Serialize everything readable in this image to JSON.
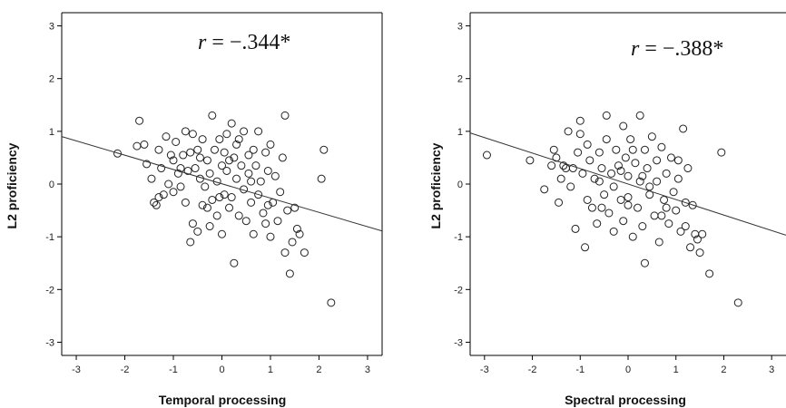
{
  "chart_data": [
    {
      "type": "scatter",
      "xlabel": "Temporal processing",
      "ylabel": "L2 proficiency",
      "xlim": [
        -3.3,
        3.3
      ],
      "ylim": [
        -3.25,
        3.25
      ],
      "x_ticks": [
        -3,
        -2,
        -1,
        0,
        1,
        2,
        3
      ],
      "y_ticks": [
        -3,
        -2,
        -1,
        0,
        1,
        2,
        3
      ],
      "grid": false,
      "annotation": {
        "r_symbol": "r",
        "r_value": " = −.344*"
      },
      "fit_line": {
        "x": [
          -3.3,
          3.3
        ],
        "y": [
          0.9,
          -0.89
        ]
      },
      "points": [
        [
          -2.15,
          0.58
        ],
        [
          -1.75,
          0.72
        ],
        [
          -1.7,
          1.2
        ],
        [
          -1.6,
          0.75
        ],
        [
          -1.55,
          0.38
        ],
        [
          -1.45,
          0.1
        ],
        [
          -1.4,
          -0.35
        ],
        [
          -1.35,
          -0.4
        ],
        [
          -1.3,
          0.65
        ],
        [
          -1.25,
          0.3
        ],
        [
          -1.2,
          -0.2
        ],
        [
          -1.15,
          0.9
        ],
        [
          -1.1,
          0.0
        ],
        [
          -1.05,
          0.55
        ],
        [
          -1.0,
          0.45
        ],
        [
          -1.0,
          -0.15
        ],
        [
          -0.95,
          0.8
        ],
        [
          -0.9,
          0.2
        ],
        [
          -0.85,
          -0.05
        ],
        [
          -0.8,
          0.55
        ],
        [
          -0.75,
          1.0
        ],
        [
          -0.75,
          -0.35
        ],
        [
          -0.7,
          0.25
        ],
        [
          -0.65,
          -1.1
        ],
        [
          -0.6,
          0.95
        ],
        [
          -0.6,
          -0.75
        ],
        [
          -0.55,
          0.3
        ],
        [
          -0.5,
          0.65
        ],
        [
          -0.5,
          -0.9
        ],
        [
          -0.45,
          0.1
        ],
        [
          -0.4,
          0.85
        ],
        [
          -0.4,
          -0.4
        ],
        [
          -0.35,
          -0.05
        ],
        [
          -0.3,
          0.45
        ],
        [
          -0.3,
          -0.45
        ],
        [
          -0.25,
          0.2
        ],
        [
          -0.2,
          1.3
        ],
        [
          -0.2,
          -0.3
        ],
        [
          -0.15,
          0.65
        ],
        [
          -0.1,
          0.05
        ],
        [
          -0.1,
          -0.6
        ],
        [
          -0.05,
          0.85
        ],
        [
          0.0,
          0.35
        ],
        [
          0.0,
          -0.95
        ],
        [
          0.05,
          0.6
        ],
        [
          0.05,
          -0.2
        ],
        [
          0.1,
          0.95
        ],
        [
          0.1,
          0.25
        ],
        [
          0.15,
          -0.45
        ],
        [
          0.2,
          1.15
        ],
        [
          0.2,
          -0.25
        ],
        [
          0.25,
          0.5
        ],
        [
          0.25,
          -1.5
        ],
        [
          0.3,
          0.1
        ],
        [
          0.35,
          0.85
        ],
        [
          0.35,
          -0.6
        ],
        [
          0.4,
          0.35
        ],
        [
          0.45,
          -0.1
        ],
        [
          0.45,
          1.0
        ],
        [
          0.5,
          -0.7
        ],
        [
          0.55,
          0.55
        ],
        [
          0.55,
          0.2
        ],
        [
          0.6,
          -0.35
        ],
        [
          0.65,
          0.65
        ],
        [
          0.65,
          -0.95
        ],
        [
          0.7,
          0.35
        ],
        [
          0.75,
          1.0
        ],
        [
          0.75,
          -0.2
        ],
        [
          0.8,
          0.05
        ],
        [
          0.85,
          -0.55
        ],
        [
          0.9,
          0.6
        ],
        [
          0.9,
          -0.75
        ],
        [
          0.95,
          0.25
        ],
        [
          1.0,
          0.75
        ],
        [
          1.0,
          -1.0
        ],
        [
          1.05,
          -0.35
        ],
        [
          1.1,
          0.15
        ],
        [
          1.15,
          -0.7
        ],
        [
          1.2,
          -0.15
        ],
        [
          1.25,
          0.5
        ],
        [
          1.3,
          1.3
        ],
        [
          1.3,
          -1.3
        ],
        [
          1.35,
          -0.5
        ],
        [
          1.4,
          -1.7
        ],
        [
          1.45,
          -1.1
        ],
        [
          1.5,
          -0.45
        ],
        [
          1.55,
          -0.85
        ],
        [
          1.6,
          -0.95
        ],
        [
          1.7,
          -1.3
        ],
        [
          2.05,
          0.1
        ],
        [
          2.1,
          0.65
        ],
        [
          2.25,
          -2.25
        ],
        [
          -1.3,
          -0.25
        ],
        [
          -0.85,
          0.3
        ],
        [
          -0.45,
          0.5
        ],
        [
          -0.05,
          -0.25
        ],
        [
          0.3,
          0.75
        ],
        [
          0.6,
          0.05
        ],
        [
          0.95,
          -0.4
        ],
        [
          -0.65,
          0.6
        ],
        [
          0.15,
          0.45
        ],
        [
          -0.25,
          -0.8
        ]
      ]
    },
    {
      "type": "scatter",
      "xlabel": "Spectral processing",
      "ylabel": "L2 proficiency",
      "xlim": [
        -3.3,
        3.3
      ],
      "ylim": [
        -3.25,
        3.25
      ],
      "x_ticks": [
        -3,
        -2,
        -1,
        0,
        1,
        2,
        3
      ],
      "y_ticks": [
        -3,
        -2,
        -1,
        0,
        1,
        2,
        3
      ],
      "grid": false,
      "annotation": {
        "r_symbol": "r",
        "r_value": " = −.388*"
      },
      "fit_line": {
        "x": [
          -3.3,
          3.3
        ],
        "y": [
          0.97,
          -0.97
        ]
      },
      "points": [
        [
          -2.95,
          0.55
        ],
        [
          -2.05,
          0.45
        ],
        [
          -1.75,
          -0.1
        ],
        [
          -1.6,
          0.35
        ],
        [
          -1.55,
          0.65
        ],
        [
          -1.5,
          0.5
        ],
        [
          -1.45,
          -0.35
        ],
        [
          -1.4,
          0.1
        ],
        [
          -1.3,
          0.3
        ],
        [
          -1.25,
          1.0
        ],
        [
          -1.2,
          -0.05
        ],
        [
          -1.1,
          -0.85
        ],
        [
          -1.05,
          0.6
        ],
        [
          -1.0,
          0.95
        ],
        [
          -1.0,
          1.2
        ],
        [
          -0.95,
          0.2
        ],
        [
          -0.9,
          -1.2
        ],
        [
          -0.85,
          0.75
        ],
        [
          -0.8,
          0.45
        ],
        [
          -0.75,
          -0.45
        ],
        [
          -0.7,
          0.1
        ],
        [
          -0.65,
          -0.75
        ],
        [
          -0.6,
          0.6
        ],
        [
          -0.55,
          0.3
        ],
        [
          -0.5,
          -0.2
        ],
        [
          -0.45,
          1.3
        ],
        [
          -0.45,
          0.85
        ],
        [
          -0.4,
          -0.55
        ],
        [
          -0.35,
          0.2
        ],
        [
          -0.3,
          -0.9
        ],
        [
          -0.25,
          0.65
        ],
        [
          -0.2,
          0.35
        ],
        [
          -0.15,
          -0.3
        ],
        [
          -0.1,
          1.1
        ],
        [
          -0.1,
          -0.7
        ],
        [
          -0.05,
          0.5
        ],
        [
          0.0,
          0.15
        ],
        [
          0.0,
          -0.25
        ],
        [
          0.05,
          0.85
        ],
        [
          0.1,
          -1.0
        ],
        [
          0.15,
          0.4
        ],
        [
          0.2,
          -0.45
        ],
        [
          0.25,
          1.3
        ],
        [
          0.25,
          0.05
        ],
        [
          0.3,
          -0.8
        ],
        [
          0.35,
          0.65
        ],
        [
          0.35,
          -1.5
        ],
        [
          0.4,
          0.3
        ],
        [
          0.45,
          -0.2
        ],
        [
          0.5,
          0.9
        ],
        [
          0.55,
          -0.6
        ],
        [
          0.6,
          0.45
        ],
        [
          0.6,
          0.05
        ],
        [
          0.65,
          -1.1
        ],
        [
          0.7,
          0.7
        ],
        [
          0.75,
          -0.3
        ],
        [
          0.8,
          0.2
        ],
        [
          0.85,
          -0.75
        ],
        [
          0.9,
          0.5
        ],
        [
          0.95,
          -0.15
        ],
        [
          1.0,
          -0.5
        ],
        [
          1.05,
          0.45
        ],
        [
          1.1,
          -0.9
        ],
        [
          1.15,
          1.05
        ],
        [
          1.2,
          -0.35
        ],
        [
          1.25,
          0.3
        ],
        [
          1.3,
          -1.2
        ],
        [
          1.35,
          -0.4
        ],
        [
          1.4,
          -0.95
        ],
        [
          1.45,
          -1.05
        ],
        [
          1.5,
          -1.3
        ],
        [
          1.55,
          -0.95
        ],
        [
          1.7,
          -1.7
        ],
        [
          1.95,
          0.6
        ],
        [
          2.3,
          -2.25
        ],
        [
          -1.35,
          0.35
        ],
        [
          -0.85,
          -0.3
        ],
        [
          -0.6,
          0.05
        ],
        [
          -0.3,
          -0.05
        ],
        [
          0.1,
          0.65
        ],
        [
          0.45,
          -0.05
        ],
        [
          0.8,
          -0.45
        ],
        [
          1.05,
          0.1
        ],
        [
          -0.15,
          0.25
        ],
        [
          0.3,
          0.15
        ],
        [
          -0.55,
          -0.45
        ],
        [
          0.7,
          -0.6
        ],
        [
          1.2,
          -0.8
        ],
        [
          -1.15,
          0.3
        ],
        [
          0.0,
          -0.4
        ]
      ]
    }
  ]
}
